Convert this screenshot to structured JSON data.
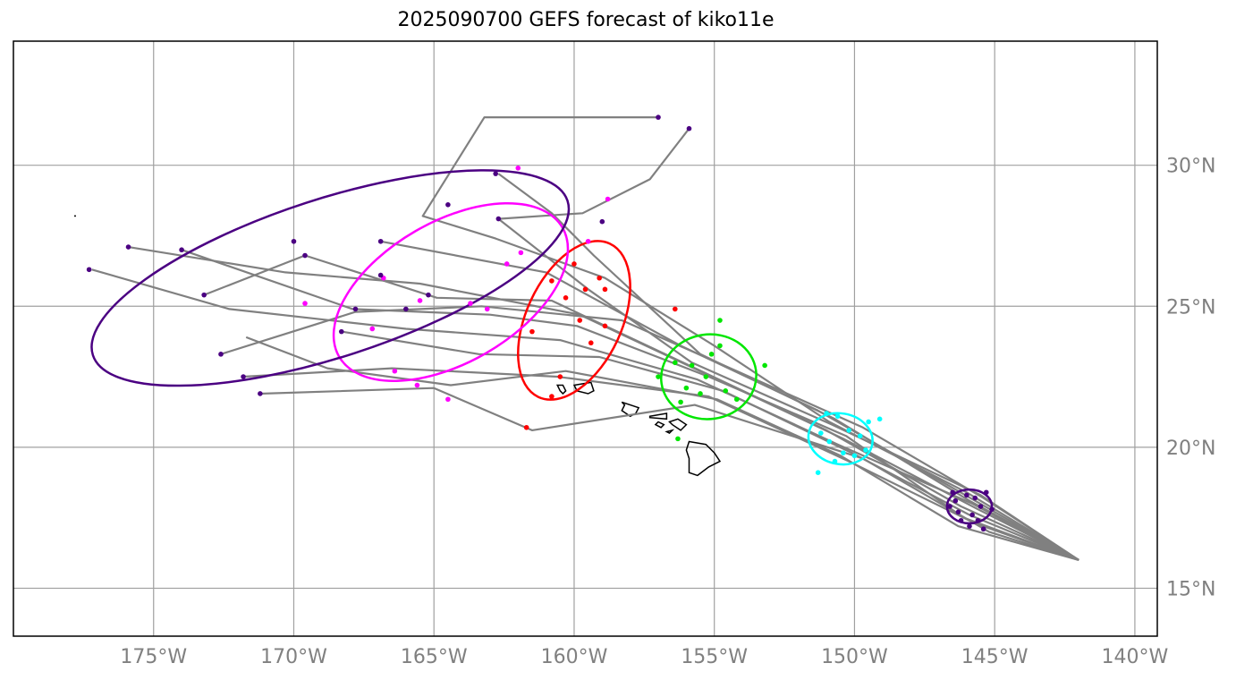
{
  "title": "2025090700 GEFS forecast of kiko11e",
  "map": {
    "lon_range": [
      -180.0,
      -139.2
    ],
    "lat_range": [
      13.3,
      34.4
    ],
    "lon_ticks": [
      {
        "value": -175,
        "label": "175°W"
      },
      {
        "value": -170,
        "label": "170°W"
      },
      {
        "value": -165,
        "label": "165°W"
      },
      {
        "value": -160,
        "label": "160°W"
      },
      {
        "value": -155,
        "label": "155°W"
      },
      {
        "value": -150,
        "label": "150°W"
      },
      {
        "value": -145,
        "label": "145°W"
      },
      {
        "value": -140,
        "label": "140°W"
      }
    ],
    "lat_ticks": [
      {
        "value": 15,
        "label": "15°N"
      },
      {
        "value": 20,
        "label": "20°N"
      },
      {
        "value": 25,
        "label": "25°N"
      },
      {
        "value": 30,
        "label": "30°N"
      }
    ],
    "grid": true,
    "colors": {
      "track": "#808080",
      "grid": "#a0a0a0",
      "coast": "#000000",
      "day1": "#4b0082",
      "day2": "#00ffff",
      "day3": "#00e600",
      "day4": "#ff0000",
      "day5": "#ff00ff",
      "day6": "#4b0082"
    }
  },
  "chart_data": {
    "type": "map",
    "tracks": [
      [
        [
          -142.0,
          16.0
        ],
        [
          -145.6,
          17.8
        ],
        [
          -150.4,
          20.3
        ],
        [
          -155.3,
          22.6
        ],
        [
          -159.8,
          24.7
        ],
        [
          -165.5,
          25.8
        ],
        [
          -170.3,
          26.2
        ],
        [
          -175.9,
          27.1
        ]
      ],
      [
        [
          -142.0,
          16.0
        ],
        [
          -145.8,
          18.0
        ],
        [
          -150.6,
          20.1
        ],
        [
          -155.6,
          22.4
        ],
        [
          -160.5,
          23.8
        ],
        [
          -166.0,
          24.2
        ],
        [
          -172.3,
          24.9
        ],
        [
          -177.2,
          26.3
        ]
      ],
      [
        [
          -142.0,
          16.0
        ],
        [
          -145.9,
          17.6
        ],
        [
          -150.1,
          19.8
        ],
        [
          -154.7,
          22.0
        ],
        [
          -159.1,
          23.2
        ],
        [
          -163.4,
          23.3
        ],
        [
          -168.3,
          24.1
        ]
      ],
      [
        [
          -142.0,
          16.0
        ],
        [
          -146.2,
          17.9
        ],
        [
          -151.0,
          20.6
        ],
        [
          -155.9,
          22.9
        ],
        [
          -160.8,
          25.2
        ],
        [
          -164.9,
          25.3
        ],
        [
          -169.6,
          26.8
        ],
        [
          -173.2,
          25.4
        ]
      ],
      [
        [
          -142.0,
          16.0
        ],
        [
          -145.4,
          18.2
        ],
        [
          -149.7,
          20.7
        ],
        [
          -154.2,
          22.7
        ],
        [
          -158.3,
          24.5
        ],
        [
          -163.3,
          25.0
        ],
        [
          -167.8,
          24.8
        ],
        [
          -172.6,
          23.3
        ]
      ],
      [
        [
          -142.0,
          16.0
        ],
        [
          -146.0,
          18.4
        ],
        [
          -150.9,
          20.9
        ],
        [
          -155.0,
          23.6
        ],
        [
          -158.9,
          26.0
        ],
        [
          -162.8,
          27.4
        ],
        [
          -165.4,
          28.2
        ],
        [
          -163.2,
          31.7
        ],
        [
          -157.0,
          31.7
        ]
      ],
      [
        [
          -142.0,
          16.0
        ],
        [
          -145.7,
          17.3
        ],
        [
          -150.2,
          19.5
        ],
        [
          -155.2,
          21.8
        ],
        [
          -160.6,
          22.5
        ],
        [
          -166.5,
          22.8
        ],
        [
          -171.8,
          22.5
        ]
      ],
      [
        [
          -142.0,
          16.0
        ],
        [
          -145.9,
          18.1
        ],
        [
          -150.7,
          21.0
        ],
        [
          -155.5,
          23.3
        ],
        [
          -159.3,
          26.8
        ],
        [
          -160.8,
          28.3
        ],
        [
          -162.7,
          29.7
        ]
      ],
      [
        [
          -142.0,
          16.0
        ],
        [
          -146.4,
          18.5
        ],
        [
          -151.3,
          21.3
        ],
        [
          -156.2,
          23.6
        ],
        [
          -161.0,
          26.2
        ],
        [
          -166.9,
          27.3
        ]
      ],
      [
        [
          -142.0,
          16.0
        ],
        [
          -145.2,
          17.0
        ],
        [
          -149.7,
          19.6
        ],
        [
          -155.7,
          21.5
        ],
        [
          -161.5,
          20.6
        ],
        [
          -165.0,
          22.1
        ],
        [
          -171.2,
          21.9
        ]
      ],
      [
        [
          -142.0,
          16.0
        ],
        [
          -146.1,
          17.5
        ],
        [
          -150.3,
          20.4
        ],
        [
          -155.2,
          22.5
        ],
        [
          -159.9,
          24.3
        ],
        [
          -163.0,
          24.7
        ],
        [
          -167.9,
          24.9
        ],
        [
          -174.0,
          27.0
        ]
      ],
      [
        [
          -142.0,
          16.0
        ],
        [
          -145.5,
          18.3
        ],
        [
          -150.8,
          20.8
        ],
        [
          -155.8,
          23.0
        ],
        [
          -159.5,
          25.6
        ],
        [
          -162.7,
          28.1
        ],
        [
          -159.7,
          28.3
        ],
        [
          -157.3,
          29.5
        ],
        [
          -155.9,
          31.3
        ]
      ],
      [
        [
          -142.0,
          16.0
        ],
        [
          -146.3,
          17.2
        ],
        [
          -150.5,
          19.7
        ],
        [
          -154.9,
          21.7
        ],
        [
          -160.3,
          22.7
        ],
        [
          -164.4,
          22.2
        ],
        [
          -168.8,
          22.8
        ],
        [
          -171.7,
          23.9
        ]
      ]
    ],
    "points": {
      "day1": [
        [
          -146.0,
          18.3
        ],
        [
          -145.5,
          17.9
        ],
        [
          -146.4,
          18.1
        ],
        [
          -145.8,
          17.6
        ],
        [
          -146.2,
          17.4
        ],
        [
          -145.3,
          18.4
        ],
        [
          -146.6,
          17.9
        ],
        [
          -145.7,
          18.2
        ],
        [
          -145.9,
          17.2
        ],
        [
          -146.3,
          17.7
        ],
        [
          -145.1,
          17.8
        ],
        [
          -145.6,
          17.4
        ],
        [
          -146.5,
          18.4
        ],
        [
          -145.4,
          17.1
        ]
      ],
      "day2": [
        [
          -150.6,
          21.1
        ],
        [
          -150.2,
          20.6
        ],
        [
          -150.9,
          20.2
        ],
        [
          -149.8,
          20.4
        ],
        [
          -150.4,
          19.8
        ],
        [
          -151.2,
          20.5
        ],
        [
          -149.5,
          20.9
        ],
        [
          -150.0,
          19.7
        ],
        [
          -151.0,
          21.2
        ],
        [
          -149.6,
          19.9
        ],
        [
          -150.7,
          19.5
        ],
        [
          -151.3,
          19.1
        ],
        [
          -149.1,
          21.0
        ]
      ],
      "day3": [
        [
          -155.3,
          22.5
        ],
        [
          -154.8,
          23.6
        ],
        [
          -156.0,
          22.1
        ],
        [
          -154.6,
          22.0
        ],
        [
          -155.8,
          22.9
        ],
        [
          -157.0,
          22.5
        ],
        [
          -154.2,
          21.7
        ],
        [
          -155.5,
          21.9
        ],
        [
          -156.4,
          23.0
        ],
        [
          -153.2,
          22.9
        ],
        [
          -154.8,
          24.5
        ],
        [
          -156.3,
          20.3
        ],
        [
          -155.1,
          23.3
        ],
        [
          -156.2,
          21.6
        ]
      ],
      "day4": [
        [
          -159.8,
          24.5
        ],
        [
          -160.3,
          25.3
        ],
        [
          -159.1,
          26.0
        ],
        [
          -160.8,
          25.9
        ],
        [
          -159.4,
          23.7
        ],
        [
          -161.5,
          24.1
        ],
        [
          -160.5,
          22.5
        ],
        [
          -158.9,
          24.3
        ],
        [
          -160.0,
          26.5
        ],
        [
          -161.7,
          20.7
        ],
        [
          -156.4,
          24.9
        ],
        [
          -159.6,
          25.6
        ],
        [
          -160.8,
          21.8
        ],
        [
          -158.9,
          25.6
        ]
      ],
      "day5": [
        [
          -163.1,
          24.9
        ],
        [
          -165.5,
          25.2
        ],
        [
          -167.2,
          24.2
        ],
        [
          -166.4,
          22.7
        ],
        [
          -162.4,
          26.5
        ],
        [
          -159.5,
          27.3
        ],
        [
          -163.7,
          25.1
        ],
        [
          -161.9,
          26.9
        ],
        [
          -165.6,
          22.2
        ],
        [
          -166.8,
          26.0
        ],
        [
          -164.5,
          21.7
        ],
        [
          -169.6,
          25.1
        ],
        [
          -158.8,
          28.8
        ],
        [
          -162.0,
          29.9
        ]
      ],
      "day6": [
        [
          -175.9,
          27.1
        ],
        [
          -177.3,
          26.3
        ],
        [
          -173.2,
          25.4
        ],
        [
          -172.6,
          23.3
        ],
        [
          -171.8,
          22.5
        ],
        [
          -171.2,
          21.9
        ],
        [
          -174.0,
          27.0
        ],
        [
          -169.6,
          26.8
        ],
        [
          -166.9,
          27.3
        ],
        [
          -166.9,
          26.1
        ],
        [
          -168.3,
          24.1
        ],
        [
          -162.8,
          29.7
        ],
        [
          -164.5,
          28.6
        ],
        [
          -157.0,
          31.7
        ],
        [
          -155.9,
          31.3
        ],
        [
          -159.0,
          28.0
        ],
        [
          -162.7,
          28.1
        ],
        [
          -165.2,
          25.4
        ],
        [
          -170.0,
          27.3
        ],
        [
          -166.0,
          24.9
        ],
        [
          -167.8,
          24.9
        ]
      ]
    },
    "ellipses": [
      {
        "day": "day1",
        "center": [
          -145.9,
          17.9
        ],
        "semi_lon_deg": 0.8,
        "semi_lat_deg": 0.6,
        "angle_deg": 0
      },
      {
        "day": "day2",
        "center": [
          -150.5,
          20.3
        ],
        "semi_lon_deg": 1.15,
        "semi_lat_deg": 0.9,
        "angle_deg": 10
      },
      {
        "day": "day3",
        "center": [
          -155.2,
          22.5
        ],
        "semi_lon_deg": 1.7,
        "semi_lat_deg": 1.5,
        "angle_deg": -8
      },
      {
        "day": "day4",
        "center": [
          -160.0,
          24.5
        ],
        "semi_lon_deg": 1.7,
        "semi_lat_deg": 3.0,
        "angle_deg": 25
      },
      {
        "day": "day5",
        "center": [
          -164.4,
          25.5
        ],
        "semi_lon_deg": 4.6,
        "semi_lat_deg": 2.5,
        "angle_deg": -30
      },
      {
        "day": "day6",
        "center": [
          -168.7,
          26.0
        ],
        "semi_lon_deg": 8.9,
        "semi_lat_deg": 2.8,
        "angle_deg": -18
      }
    ],
    "islands": [
      [
        [
          -160.6,
          22.2
        ],
        [
          -160.5,
          22.0
        ],
        [
          -160.4,
          21.9
        ],
        [
          -160.3,
          22.0
        ],
        [
          -160.4,
          22.2
        ]
      ],
      [
        [
          -160.0,
          22.2
        ],
        [
          -159.4,
          22.3
        ],
        [
          -159.3,
          22.0
        ],
        [
          -159.5,
          21.9
        ],
        [
          -159.9,
          22.0
        ]
      ],
      [
        [
          -158.3,
          21.6
        ],
        [
          -157.7,
          21.4
        ],
        [
          -157.8,
          21.2
        ],
        [
          -158.0,
          21.1
        ],
        [
          -158.3,
          21.3
        ],
        [
          -158.2,
          21.5
        ]
      ],
      [
        [
          -157.3,
          21.1
        ],
        [
          -156.7,
          21.2
        ],
        [
          -156.7,
          21.0
        ],
        [
          -157.3,
          21.05
        ]
      ],
      [
        [
          -157.0,
          20.9
        ],
        [
          -156.8,
          20.8
        ],
        [
          -156.9,
          20.7
        ],
        [
          -157.1,
          20.8
        ]
      ],
      [
        [
          -156.6,
          20.9
        ],
        [
          -156.3,
          21.0
        ],
        [
          -156.0,
          20.8
        ],
        [
          -156.2,
          20.6
        ],
        [
          -156.5,
          20.8
        ]
      ],
      [
        [
          -156.7,
          20.55
        ],
        [
          -156.5,
          20.6
        ],
        [
          -156.6,
          20.5
        ]
      ],
      [
        [
          -155.9,
          20.2
        ],
        [
          -155.3,
          20.1
        ],
        [
          -155.0,
          19.8
        ],
        [
          -154.8,
          19.5
        ],
        [
          -155.2,
          19.3
        ],
        [
          -155.6,
          19.0
        ],
        [
          -155.9,
          19.1
        ],
        [
          -155.9,
          19.6
        ],
        [
          -156.0,
          19.9
        ]
      ]
    ],
    "extra_dots": [
      [
        -177.8,
        28.2
      ]
    ]
  }
}
